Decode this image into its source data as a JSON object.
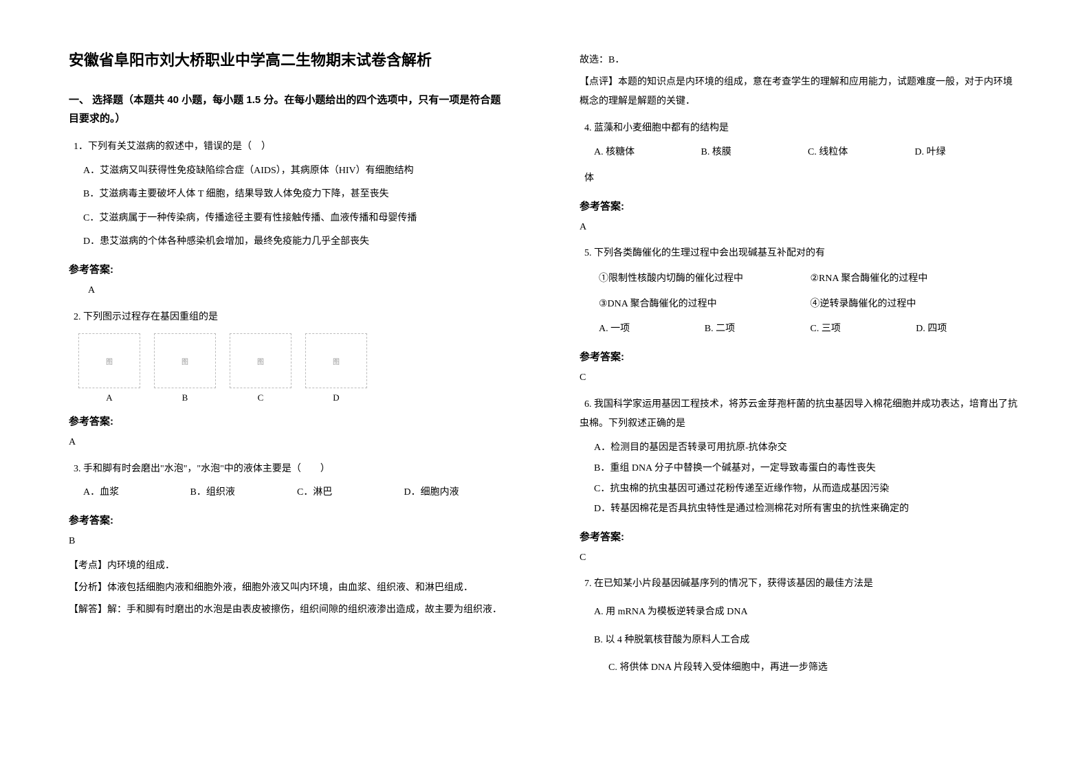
{
  "title": "安徽省阜阳市刘大桥职业中学高二生物期末试卷含解析",
  "section1": "一、 选择题（本题共 40 小题，每小题 1.5 分。在每小题给出的四个选项中，只有一项是符合题目要求的。）",
  "q1": {
    "stem": "1．下列有关艾滋病的叙述中，错误的是（　）",
    "a": "A．艾滋病又叫获得性免疫缺陷综合症（AIDS），其病原体（HIV）有细胞结构",
    "b": "B．艾滋病毒主要破坏人体 T 细胞，结果导致人体免疫力下降，甚至丧失",
    "c": "C．艾滋病属于一种传染病，传播途径主要有性接触传播、血液传播和母婴传播",
    "d": "D．患艾滋病的个体各种感染机会增加，最终免疫能力几乎全部丧失"
  },
  "q1_ans": "A",
  "q2": {
    "stem": "2. 下列图示过程存在基因重组的是",
    "labels": {
      "a": "A",
      "b": "B",
      "c": "C",
      "d": "D"
    },
    "img_fallback": "图"
  },
  "q2_ans": "A",
  "q3": {
    "stem": "3. 手和脚有时会磨出\"水泡\"，\"水泡\"中的液体主要是（　　）",
    "a": "A．血浆",
    "b": "B．组织液",
    "c": "C．淋巴",
    "d": "D．细胞内液"
  },
  "q3_ans": "B",
  "q3_point": "【考点】内环境的组成．",
  "q3_analysis1": "【分析】体液包括细胞内液和细胞外液，细胞外液又叫内环境，由血浆、组织液、和淋巴组成．",
  "q3_analysis2": "【解答】解：手和脚有时磨出的水泡是由表皮被擦伤，组织间隙的组织液渗出造成，故主要为组织液．",
  "q3_answer_line": "故选：B．",
  "q3_comment": "【点评】本题的知识点是内环境的组成，意在考查学生的理解和应用能力，试题难度一般，对于内环境概念的理解是解题的关键．",
  "q4": {
    "stem": "4. 蓝藻和小麦细胞中都有的结构是",
    "a": "A. 核糖体",
    "b": "B. 核膜",
    "c": "C. 线粒体",
    "d": "D. 叶绿",
    "tail": "体"
  },
  "q4_ans": "A",
  "q5": {
    "stem": "5. 下列各类酶催化的生理过程中会出现碱基互补配对的有",
    "s1": "①限制性核酸内切酶的催化过程中",
    "s2": "②RNA 聚合酶催化的过程中",
    "s3": "③DNA 聚合酶催化的过程中",
    "s4": "④逆转录酶催化的过程中",
    "a": "A. 一项",
    "b": "B. 二项",
    "c": "C. 三项",
    "d": "D. 四项"
  },
  "q5_ans": "C",
  "q6": {
    "stem": "6. 我国科学家运用基因工程技术，将苏云金芽孢杆菌的抗虫基因导入棉花细胞并成功表达，培育出了抗虫棉。下列叙述正确的是",
    "a": "A．检测目的基因是否转录可用抗原-抗体杂交",
    "b": "B．重组 DNA 分子中替换一个碱基对，一定导致毒蛋白的毒性丧失",
    "c": "C．抗虫棉的抗虫基因可通过花粉传递至近缘作物，从而造成基因污染",
    "d": "D．转基因棉花是否具抗虫特性是通过检测棉花对所有害虫的抗性来确定的"
  },
  "q6_ans": "C",
  "q7": {
    "stem": "7. 在已知某小片段基因碱基序列的情况下，获得该基因的最佳方法是",
    "a": "A.  用 mRNA 为模板逆转录合成 DNA",
    "b": "B.  以 4 种脱氧核苷酸为原料人工合成",
    "c": "C.  将供体 DNA 片段转入受体细胞中，再进一步筛选"
  },
  "labels": {
    "answer_heading": "参考答案:"
  }
}
